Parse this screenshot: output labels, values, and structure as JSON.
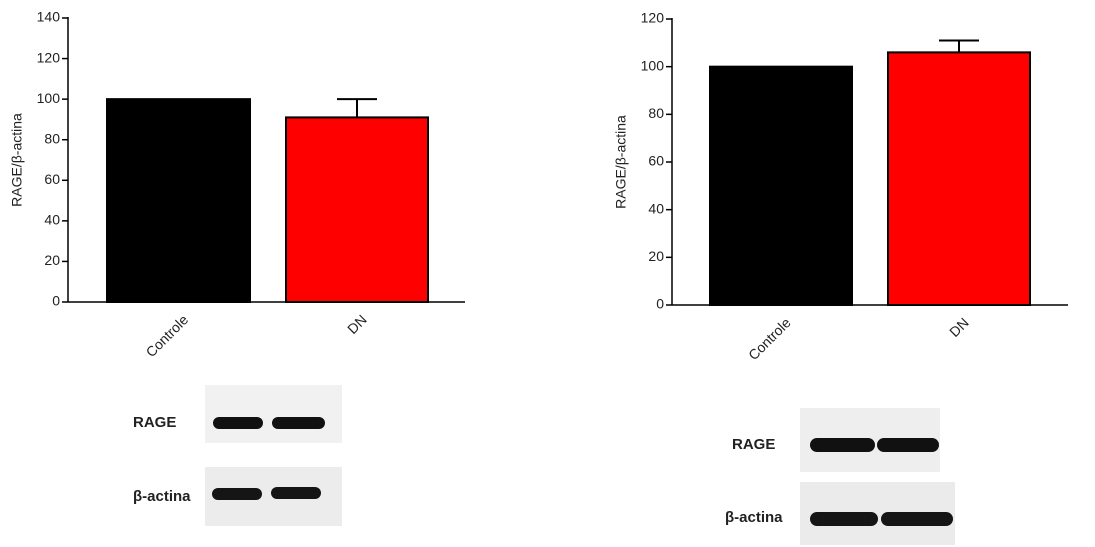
{
  "chart_data": [
    {
      "type": "bar",
      "ylabel": "RAGE/β-actina",
      "categories": [
        "Controle",
        "DN"
      ],
      "values": [
        100,
        91
      ],
      "errors": [
        null,
        9
      ],
      "colors": [
        "#000000",
        "#ff0000"
      ],
      "ylim": [
        0,
        140
      ],
      "yticks": [
        0,
        20,
        40,
        60,
        80,
        100,
        120,
        140
      ]
    },
    {
      "type": "bar",
      "ylabel": "RAGE/β-actina",
      "categories": [
        "Controle",
        "DN"
      ],
      "values": [
        100,
        106
      ],
      "errors": [
        null,
        5
      ],
      "colors": [
        "#000000",
        "#ff0000"
      ],
      "ylim": [
        0,
        120
      ],
      "yticks": [
        0,
        20,
        40,
        60,
        80,
        100,
        120
      ]
    }
  ],
  "blots": [
    {
      "labels": [
        "RAGE",
        "β-actina"
      ]
    },
    {
      "labels": [
        "RAGE",
        "β-actina"
      ]
    }
  ]
}
